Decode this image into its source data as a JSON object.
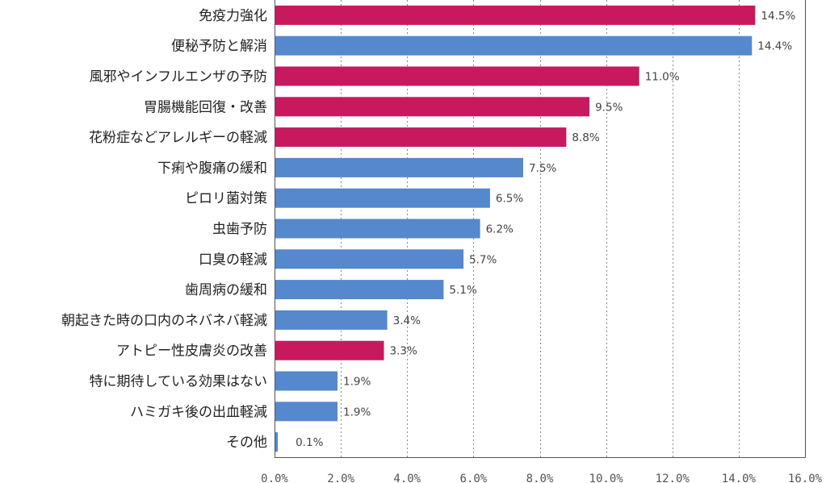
{
  "chart_data": {
    "type": "bar",
    "orientation": "horizontal",
    "categories": [
      "免疫力強化",
      "便秘予防と解消",
      "風邪やインフルエンザの予防",
      "胃腸機能回復・改善",
      "花粉症などアレルギーの軽減",
      "下痢や腹痛の緩和",
      "ピロリ菌対策",
      "虫歯予防",
      "口臭の軽減",
      "歯周病の緩和",
      "朝起きた時の口内のネバネバ軽減",
      "アトピー性皮膚炎の改善",
      "特に期待している効果はない",
      "ハミガキ後の出血軽減",
      "その他"
    ],
    "values": [
      14.5,
      14.4,
      11.0,
      9.5,
      8.8,
      7.5,
      6.5,
      6.2,
      5.7,
      5.1,
      3.4,
      3.3,
      1.9,
      1.9,
      0.1
    ],
    "value_labels": [
      "14.5%",
      "14.4%",
      "11.0%",
      "9.5%",
      "8.8%",
      "7.5%",
      "6.5%",
      "6.2%",
      "5.7%",
      "5.1%",
      "3.4%",
      "3.3%",
      "1.9%",
      "1.9%",
      "0.1%"
    ],
    "bar_colors": [
      "#c8195e",
      "#5588cc",
      "#c8195e",
      "#c8195e",
      "#c8195e",
      "#5588cc",
      "#5588cc",
      "#5588cc",
      "#5588cc",
      "#5588cc",
      "#5588cc",
      "#c8195e",
      "#5588cc",
      "#5588cc",
      "#5588cc"
    ],
    "xlim": [
      0,
      16
    ],
    "x_ticks": [
      0,
      2,
      4,
      6,
      8,
      10,
      12,
      14,
      16
    ],
    "x_tick_labels": [
      "0.0%",
      "2.0%",
      "4.0%",
      "6.0%",
      "8.0%",
      "10.0%",
      "12.0%",
      "14.0%",
      "16.0%"
    ],
    "grid": "vertical dashed",
    "title": "",
    "xlabel": "",
    "ylabel": ""
  }
}
